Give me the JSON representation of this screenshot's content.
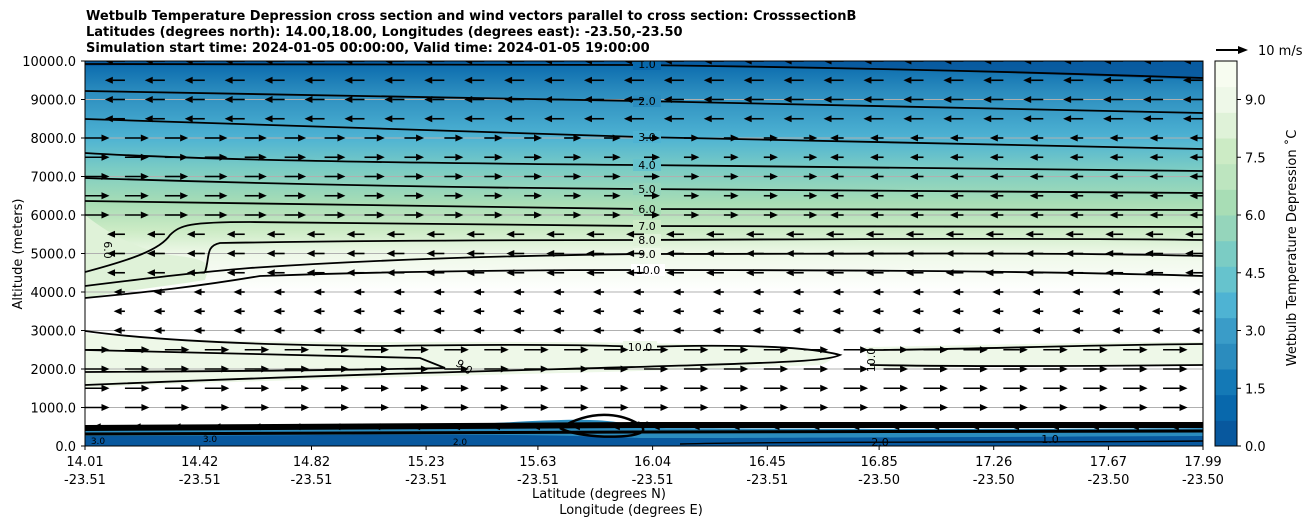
{
  "title_lines": [
    "Wetbulb Temperature Depression cross section and wind vectors parallel to cross section: CrosssectionB",
    "Latitudes (degrees north): 14.00,18.00, Longitudes (degrees east): -23.50,-23.50",
    "Simulation start time: 2024-01-05 00:00:00, Valid time: 2024-01-05 19:00:00"
  ],
  "chart_data": {
    "type": "heatmap",
    "ylabel": "Altitude (meters)",
    "xlabel_lines": [
      "Latitude (degrees N)",
      "Longitude (degrees E)"
    ],
    "ylim": [
      0,
      10000
    ],
    "yticks": [
      "0.0",
      "1000.0",
      "2000.0",
      "3000.0",
      "4000.0",
      "5000.0",
      "6000.0",
      "7000.0",
      "8000.0",
      "9000.0",
      "10000.0"
    ],
    "xticks": [
      {
        "lat": "14.01",
        "lon": "-23.51",
        "frac": 0.0
      },
      {
        "lat": "14.42",
        "lon": "-23.51",
        "frac": 0.1026
      },
      {
        "lat": "14.82",
        "lon": "-23.51",
        "frac": 0.2026
      },
      {
        "lat": "15.23",
        "lon": "-23.51",
        "frac": 0.3051
      },
      {
        "lat": "15.63",
        "lon": "-23.51",
        "frac": 0.4051
      },
      {
        "lat": "16.04",
        "lon": "-23.51",
        "frac": 0.5077
      },
      {
        "lat": "16.45",
        "lon": "-23.51",
        "frac": 0.6103
      },
      {
        "lat": "16.85",
        "lon": "-23.50",
        "frac": 0.7103
      },
      {
        "lat": "17.26",
        "lon": "-23.50",
        "frac": 0.8128
      },
      {
        "lat": "17.67",
        "lon": "-23.50",
        "frac": 0.9154
      },
      {
        "lat": "17.99",
        "lon": "-23.50",
        "frac": 1.0
      }
    ],
    "colorbar": {
      "label": "Wetbulb Temperature Depression ˚C",
      "min": 0,
      "max": 10,
      "ticks": [
        "0.0",
        "1.5",
        "3.0",
        "4.5",
        "6.0",
        "7.5",
        "9.0"
      ],
      "colors": [
        "#08589e",
        "#0868ac",
        "#1479b6",
        "#2b8cbe",
        "#3a9cc8",
        "#4eb3d3",
        "#66c3cd",
        "#7bccc4",
        "#95d5bb",
        "#a8ddb5",
        "#bde5bf",
        "#ccebc5",
        "#dff2d8",
        "#eef8e8",
        "#f7fcf0"
      ]
    },
    "wind_reference": "10 m/s",
    "contour_labels": [
      "1.0",
      "2.0",
      "3.0",
      "4.0",
      "5.0",
      "6.0",
      "7.0",
      "8.0",
      "9.0",
      "10.0"
    ],
    "contours": [
      {
        "level": 1.0,
        "alt": 9850
      },
      {
        "level": 2.0,
        "alt": 9100
      },
      {
        "level": 3.0,
        "alt": 8250
      },
      {
        "level": 4.0,
        "alt": 7250
      },
      {
        "level": 5.0,
        "alt": 6600
      },
      {
        "level": 6.0,
        "alt": 6150
      },
      {
        "level": 7.0,
        "alt": 5700
      },
      {
        "level": 8.0,
        "alt": 5350
      },
      {
        "level": 9.0,
        "alt": 4950
      },
      {
        "level": 10.0,
        "alt": 4550
      },
      {
        "level": 10.0,
        "alt": 2300
      },
      {
        "level": 9.0,
        "alt": 2000
      }
    ],
    "grid": "horizontal"
  }
}
